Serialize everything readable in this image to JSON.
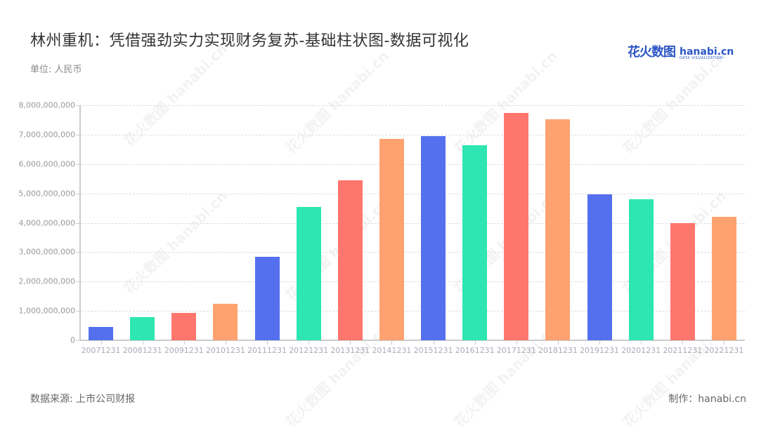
{
  "header": {
    "title": "林州重机：凭借强劲实力实现财务复苏-基础柱状图-数据可视化",
    "unit": "单位: 人民币",
    "logo_cn": "花火数图",
    "logo_en": "hanabi.cn",
    "logo_sub": "DATA VISUALIZATION"
  },
  "footer": {
    "source": "数据来源: 上市公司财报",
    "maker": "制作：hanabi.cn"
  },
  "watermark": "花火数图 hanabi.cn",
  "colors": [
    "#5470ee",
    "#2de6b1",
    "#ff766e",
    "#ffa270"
  ],
  "chart_data": {
    "type": "bar",
    "title": "林州重机：凭借强劲实力实现财务复苏-基础柱状图-数据可视化",
    "subtitle": "单位: 人民币",
    "xlabel": "",
    "ylabel": "",
    "ylim": [
      0,
      8000000000
    ],
    "grid": true,
    "legend": "none",
    "yticks": [
      "0",
      "1,000,000,000",
      "2,000,000,000",
      "3,000,000,000",
      "4,000,000,000",
      "5,000,000,000",
      "6,000,000,000",
      "7,000,000,000",
      "8,000,000,000"
    ],
    "categories": [
      "20071231",
      "20081231",
      "20091231",
      "20101231",
      "20111231",
      "20121231",
      "20131231",
      "20141231",
      "20151231",
      "20161231",
      "20171231",
      "20181231",
      "20191231",
      "20201231",
      "20211231",
      "20221231"
    ],
    "values": [
      450000000,
      790000000,
      930000000,
      1240000000,
      2840000000,
      4540000000,
      5440000000,
      6850000000,
      6950000000,
      6640000000,
      7740000000,
      7520000000,
      4960000000,
      4800000000,
      3980000000,
      4200000000
    ]
  }
}
